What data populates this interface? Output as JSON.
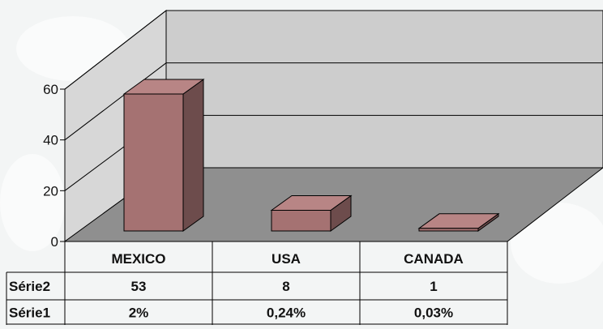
{
  "chart_data": {
    "type": "bar",
    "categories": [
      "MEXICO",
      "USA",
      "CANADA"
    ],
    "series": [
      {
        "name": "Série2",
        "values": [
          53,
          8,
          1
        ]
      }
    ],
    "table_rows": [
      {
        "name": "Série2",
        "cells": [
          "53",
          "8",
          "1"
        ]
      },
      {
        "name": "Série1",
        "cells": [
          "2%",
          "0,24%",
          "0,03%"
        ]
      }
    ],
    "y_ticks": [
      "0",
      "20",
      "40",
      "60"
    ],
    "ylim": [
      0,
      60
    ],
    "grid": true,
    "bar_color": "#a57272",
    "bar_side_color": "#6d4c4c",
    "bar_top_color": "#b88585",
    "wall_color": "#cdcdcd",
    "floor_color": "#8f8f8f"
  }
}
